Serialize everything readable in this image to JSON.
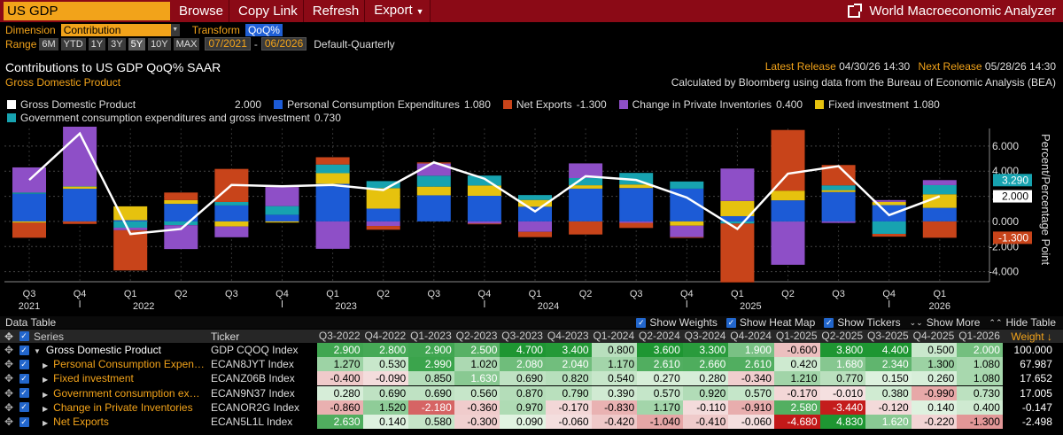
{
  "topbar": {
    "security": "US GDP",
    "menu": [
      "Browse",
      "Copy Link",
      "Refresh",
      "Export"
    ],
    "app_title": "World Macroeconomic Analyzer"
  },
  "params": {
    "dimension_label": "Dimension",
    "dimension_value": "Contribution",
    "transform_label": "Transform",
    "transform_value": "QoQ%",
    "range_label": "Range",
    "range_buttons": [
      "6M",
      "YTD",
      "1Y",
      "3Y",
      "5Y",
      "10Y",
      "MAX"
    ],
    "active_range": "5Y",
    "start_date": "07/2021",
    "end_date": "06/2026",
    "frequency": "Default-Quarterly"
  },
  "header": {
    "title": "Contributions to US GDP QoQ% SAAR",
    "subtitle": "Gross Domestic Product",
    "latest_label": "Latest Release",
    "latest_value": "04/30/26 14:30",
    "next_label": "Next Release",
    "next_value": "05/28/26 14:30",
    "source": "Calculated by Bloomberg using data from the Bureau of Economic Analysis (BEA)"
  },
  "legend": {
    "row1": [
      {
        "label": "Gross Domestic Product",
        "value": "2.000",
        "color": "#ffffff"
      },
      {
        "label": "Personal Consumption Expenditures",
        "value": "1.080",
        "color": "#1c5bd6"
      },
      {
        "label": "Net Exports",
        "value": "-1.300",
        "color": "#c8441a"
      },
      {
        "label": "Change in Private Inventories",
        "value": "0.400",
        "color": "#8e4fc7"
      },
      {
        "label": "Fixed investment",
        "value": "1.080",
        "color": "#e6c20e"
      }
    ],
    "row2": [
      {
        "label": "Government consumption expenditures and gross investment",
        "value": "0.730",
        "color": "#17a3b0"
      }
    ]
  },
  "chart_data": {
    "type": "bar",
    "stacked": true,
    "categories": [
      "Q3 2021",
      "Q4 2021",
      "Q1 2022",
      "Q2 2022",
      "Q3 2022",
      "Q4 2022",
      "Q1 2023",
      "Q2 2023",
      "Q3 2023",
      "Q4 2023",
      "Q1 2024",
      "Q2 2024",
      "Q3 2024",
      "Q4 2024",
      "Q1 2025",
      "Q2 2025",
      "Q3 2025",
      "Q4 2025",
      "Q1 2026"
    ],
    "tick_labels": [
      "Q3",
      "Q4",
      "Q1",
      "Q2",
      "Q3",
      "Q4",
      "Q1",
      "Q2",
      "Q3",
      "Q4",
      "Q1",
      "Q2",
      "Q3",
      "Q4",
      "Q1",
      "Q2",
      "Q3",
      "Q4",
      "Q1"
    ],
    "year_labels": [
      "2021",
      "2022",
      "2023",
      "2024",
      "2025",
      "2026"
    ],
    "ylabel": "Percent/Percentage Point",
    "ylim": [
      -4.8,
      7.4
    ],
    "yticks": [
      "6.000",
      "4.000",
      "2.000",
      "0.000",
      "-2.000",
      "-4.000"
    ],
    "ytick_values": [
      6,
      4,
      2,
      0,
      -2,
      -4
    ],
    "series": [
      {
        "name": "Personal Consumption Expenditures",
        "color": "#1c5bd6",
        "values": [
          2.2,
          2.6,
          0.1,
          1.4,
          1.27,
          0.53,
          2.99,
          1.02,
          2.08,
          2.04,
          1.17,
          2.61,
          2.66,
          2.61,
          0.42,
          1.68,
          2.34,
          1.3,
          1.08
        ]
      },
      {
        "name": "Fixed investment",
        "color": "#e6c20e",
        "values": [
          -0.1,
          0.2,
          1.1,
          0.3,
          -0.4,
          -0.09,
          0.85,
          1.63,
          0.69,
          0.82,
          0.54,
          0.27,
          0.28,
          -0.34,
          1.21,
          0.77,
          0.15,
          0.26,
          1.08
        ]
      },
      {
        "name": "Government consumption expenditures and gross investment",
        "color": "#17a3b0",
        "values": [
          0.1,
          0.0,
          -0.5,
          -0.3,
          0.28,
          0.69,
          0.69,
          0.56,
          0.87,
          0.79,
          0.39,
          0.57,
          0.92,
          0.57,
          -0.17,
          -0.01,
          0.38,
          -0.99,
          0.73
        ]
      },
      {
        "name": "Change in Private Inventories",
        "color": "#8e4fc7",
        "values": [
          2.0,
          5.0,
          -0.2,
          -1.9,
          -0.86,
          1.52,
          -2.18,
          -0.36,
          0.97,
          -0.17,
          -0.83,
          1.17,
          -0.11,
          -0.91,
          2.58,
          -3.44,
          -0.12,
          0.14,
          0.4
        ]
      },
      {
        "name": "Net Exports",
        "color": "#c8441a",
        "values": [
          -1.2,
          -0.2,
          -3.2,
          0.6,
          2.63,
          0.14,
          0.58,
          -0.3,
          0.09,
          -0.06,
          -0.42,
          -1.04,
          -0.41,
          -0.06,
          -4.68,
          4.83,
          1.62,
          -0.22,
          -1.3
        ]
      },
      {
        "name": "Gross Domestic Product",
        "color": "#ffffff",
        "type": "line",
        "values": [
          3.3,
          7.0,
          -1.0,
          -0.6,
          2.9,
          2.8,
          2.9,
          2.5,
          4.7,
          3.4,
          0.8,
          3.6,
          3.3,
          1.9,
          -0.6,
          3.8,
          4.4,
          0.5,
          2.0
        ]
      }
    ],
    "last_value_tags": [
      {
        "text": "3.290",
        "color": "#17a3b0",
        "value": 3.29
      },
      {
        "text": "2.000",
        "color": "#ffffff",
        "value": 2.0
      },
      {
        "text": "-1.300",
        "color": "#c8441a",
        "value": -1.3
      }
    ]
  },
  "table": {
    "title": "Data Table",
    "options": [
      "Show Weights",
      "Show Heat Map",
      "Show Tickers",
      "Show More",
      "Hide Table"
    ],
    "col_series": "Series",
    "col_ticker": "Ticker",
    "col_weight": "Weight",
    "periods": [
      "Q3-2022",
      "Q4-2022",
      "Q1-2023",
      "Q2-2023",
      "Q3-2023",
      "Q4-2023",
      "Q1-2024",
      "Q2-2024",
      "Q3-2024",
      "Q4-2024",
      "Q1-2025",
      "Q2-2025",
      "Q3-2025",
      "Q4-2025",
      "Q1-2026"
    ],
    "rows": [
      {
        "series": "Gross Domestic Product",
        "ticker": "GDP CQOQ Index",
        "values": [
          "2.900",
          "2.800",
          "2.900",
          "2.500",
          "4.700",
          "3.400",
          "0.800",
          "3.600",
          "3.300",
          "1.900",
          "-0.600",
          "3.800",
          "4.400",
          "0.500",
          "2.000"
        ],
        "weight": "100.000",
        "top": true
      },
      {
        "series": "Personal Consumption Expen…",
        "ticker": "ECAN8JYT Index",
        "values": [
          "1.270",
          "0.530",
          "2.990",
          "1.020",
          "2.080",
          "2.040",
          "1.170",
          "2.610",
          "2.660",
          "2.610",
          "0.420",
          "1.680",
          "2.340",
          "1.300",
          "1.080"
        ],
        "weight": "67.987"
      },
      {
        "series": "Fixed investment",
        "ticker": "ECANZ06B Index",
        "values": [
          "-0.400",
          "-0.090",
          "0.850",
          "1.630",
          "0.690",
          "0.820",
          "0.540",
          "0.270",
          "0.280",
          "-0.340",
          "1.210",
          "0.770",
          "0.150",
          "0.260",
          "1.080"
        ],
        "weight": "17.652"
      },
      {
        "series": "Government consumption ex…",
        "ticker": "ECAN9N37 Index",
        "values": [
          "0.280",
          "0.690",
          "0.690",
          "0.560",
          "0.870",
          "0.790",
          "0.390",
          "0.570",
          "0.920",
          "0.570",
          "-0.170",
          "-0.010",
          "0.380",
          "-0.990",
          "0.730"
        ],
        "weight": "17.005"
      },
      {
        "series": "Change in Private Inventories",
        "ticker": "ECANOR2G Index",
        "values": [
          "-0.860",
          "1.520",
          "-2.180",
          "-0.360",
          "0.970",
          "-0.170",
          "-0.830",
          "1.170",
          "-0.110",
          "-0.910",
          "2.580",
          "-3.440",
          "-0.120",
          "0.140",
          "0.400"
        ],
        "weight": "-0.147"
      },
      {
        "series": "Net Exports",
        "ticker": "ECAN5L1L Index",
        "values": [
          "2.630",
          "0.140",
          "0.580",
          "-0.300",
          "0.090",
          "-0.060",
          "-0.420",
          "-1.040",
          "-0.410",
          "-0.060",
          "-4.680",
          "4.830",
          "1.620",
          "-0.220",
          "-1.300"
        ],
        "weight": "-2.498"
      }
    ]
  }
}
